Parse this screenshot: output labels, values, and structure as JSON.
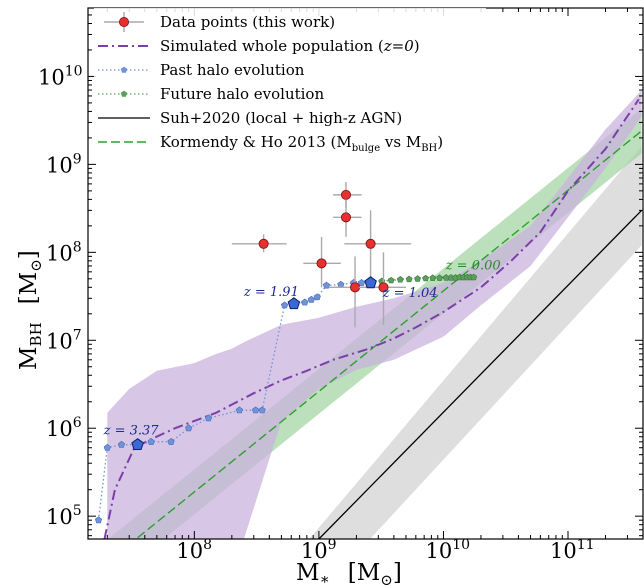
{
  "chart_data": {
    "type": "scatter",
    "xlabel": "M",
    "xlabel_sub": "∗",
    "xlabel_unit": "[M",
    "xlabel_unit_sub": "⊙",
    "xlabel_unit_close": "]",
    "ylabel": "M",
    "ylabel_sub": "BH",
    "ylabel_unit": "[M",
    "ylabel_unit_sub": "⊙",
    "ylabel_unit_close": "]",
    "x_scale": "log",
    "y_scale": "log",
    "xlim": [
      14000000.0,
      400000000000.0
    ],
    "ylim": [
      55000.0,
      60000000000.0
    ],
    "x_ticks": [
      {
        "value": 100000000.0,
        "base": "10",
        "exp": "8"
      },
      {
        "value": 1000000000.0,
        "base": "10",
        "exp": "9"
      },
      {
        "value": 10000000000.0,
        "base": "10",
        "exp": "10"
      },
      {
        "value": 100000000000.0,
        "base": "10",
        "exp": "11"
      }
    ],
    "y_ticks": [
      {
        "value": 100000.0,
        "base": "10",
        "exp": "5"
      },
      {
        "value": 1000000.0,
        "base": "10",
        "exp": "6"
      },
      {
        "value": 10000000.0,
        "base": "10",
        "exp": "7"
      },
      {
        "value": 100000000.0,
        "base": "10",
        "exp": "8"
      },
      {
        "value": 1000000000.0,
        "base": "10",
        "exp": "9"
      },
      {
        "value": 10000000000.0,
        "base": "10",
        "exp": "10"
      }
    ],
    "legend": {
      "position": "top-left",
      "entries": [
        {
          "label": "Data points (this work)",
          "style": "errorbar-marker",
          "color": "#e83030"
        },
        {
          "label": "Simulated whole population (",
          "label_tail": ")",
          "math": "z=0",
          "style": "dashdot",
          "color": "#7b3fa8"
        },
        {
          "label": "Past halo evolution",
          "style": "dotted-marker",
          "color": "#6f93d8"
        },
        {
          "label": "Future halo evolution",
          "style": "dotted-marker",
          "color": "#5aa05a"
        },
        {
          "label": "Suh+2020 (local + high-z AGN)",
          "style": "solid",
          "color": "#000000"
        },
        {
          "label": "Kormendy & Ho 2013 (M",
          "label_sub": "bulge",
          "label_mid": " vs M",
          "label_sub2": "BH",
          "label_tail": ")",
          "style": "dashed",
          "color": "#2ca02c"
        }
      ]
    },
    "data_points": [
      {
        "x": 360000000.0,
        "y": 125000000.0,
        "xerr": [
          200000000.0,
          550000000.0
        ],
        "yerr": [
          100000000.0,
          160000000.0
        ]
      },
      {
        "x": 1050000000.0,
        "y": 75000000.0,
        "xerr": [
          750000000.0,
          1500000000.0
        ],
        "yerr": [
          40000000.0,
          150000000.0
        ]
      },
      {
        "x": 1650000000.0,
        "y": 450000000.0,
        "xerr": [
          1300000000.0,
          2200000000.0
        ],
        "yerr": [
          320000000.0,
          630000000.0
        ]
      },
      {
        "x": 1650000000.0,
        "y": 250000000.0,
        "xerr": [
          1300000000.0,
          2200000000.0
        ],
        "yerr": [
          150000000.0,
          400000000.0
        ]
      },
      {
        "x": 1950000000.0,
        "y": 40000000.0,
        "xerr": [
          1200000000.0,
          3300000000.0
        ],
        "yerr": [
          14000000.0,
          90000000.0
        ]
      },
      {
        "x": 2600000000.0,
        "y": 125000000.0,
        "xerr": [
          1600000000.0,
          5500000000.0
        ],
        "yerr": [
          40000000.0,
          300000000.0
        ]
      },
      {
        "x": 3300000000.0,
        "y": 40000000.0,
        "xerr": [
          2100000000.0,
          5000000000.0
        ],
        "yerr": [
          15000000.0,
          100000000.0
        ]
      }
    ],
    "simulated_median": {
      "x": [
        19000000.0,
        23000000.0,
        33000000.0,
        45000000.0,
        70000000.0,
        150000000.0,
        300000000.0,
        500000000.0,
        800000000.0,
        1300000000.0,
        2500000000.0,
        4000000000.0,
        6000000000.0,
        10000000000.0,
        20000000000.0,
        35000000000.0,
        60000000000.0,
        100000000000.0,
        200000000000.0,
        370000000000.0
      ],
      "y": [
        55000.0,
        200000.0,
        600000.0,
        750000.0,
        1000000.0,
        1500000.0,
        2500000.0,
        3500000.0,
        4500000.0,
        6000000.0,
        8000000.0,
        10500000.0,
        14000000.0,
        21000000.0,
        40000000.0,
        80000000.0,
        170000000.0,
        500000000.0,
        1500000000.0,
        5500000000.0
      ]
    },
    "simulated_band": {
      "x": [
        20000000.0,
        30000000.0,
        50000000.0,
        100000000.0,
        150000000.0,
        200000000.0,
        250000000.0,
        500000000.0,
        1000000000.0,
        2000000000.0,
        4000000000.0,
        10000000000.0,
        20000000000.0,
        50000000000.0,
        100000000000.0,
        200000000000.0,
        390000000000.0
      ],
      "upper": [
        1500000.0,
        2800000.0,
        4500000.0,
        5500000.0,
        7000000.0,
        8000000.0,
        9500000.0,
        15000000.0,
        18000000.0,
        24000000.0,
        30000000.0,
        45000000.0,
        80000000.0,
        200000000.0,
        700000000.0,
        2500000000.0,
        7000000000.0
      ],
      "lower": [
        55000.0,
        55000.0,
        55000.0,
        55000.0,
        55000.0,
        55000.0,
        55000.0,
        1200000.0,
        2800000.0,
        4600000.0,
        6000000.0,
        11000000.0,
        25000000.0,
        70000000.0,
        250000000.0,
        900000000.0,
        3500000000.0
      ]
    },
    "past_halo": {
      "x": [
        17000000.0,
        20000000.0,
        26000000.0,
        35000000.0,
        45000000.0,
        65000000.0,
        90000000.0,
        130000000.0,
        230000000.0,
        310000000.0,
        350000000.0,
        530000000.0,
        630000000.0,
        770000000.0,
        870000000.0,
        970000000.0,
        1150000000.0,
        1500000000.0,
        1900000000.0,
        2200000000.0,
        2500000000.0
      ],
      "y": [
        90000.0,
        600000.0,
        650000.0,
        650000.0,
        700000.0,
        700000.0,
        1000000.0,
        1300000.0,
        1600000.0,
        1600000.0,
        1600000.0,
        25000000.0,
        26000000.0,
        27000000.0,
        29000000.0,
        31000000.0,
        42000000.0,
        43000000.0,
        45000000.0,
        45000000.0,
        45000000.0
      ]
    },
    "future_halo": {
      "x": [
        2600000000.0,
        3200000000.0,
        3800000000.0,
        4500000000.0,
        5300000000.0,
        6200000000.0,
        7200000000.0,
        8200000000.0,
        9300000000.0,
        10500000000.0,
        11500000000.0,
        12500000000.0,
        13500000000.0,
        14500000000.0,
        15500000000.0,
        16500000000.0,
        17500000000.0
      ],
      "y": [
        45000000.0,
        47000000.0,
        48000000.0,
        49000000.0,
        49500000.0,
        50000000.0,
        50500000.0,
        51000000.0,
        51000000.0,
        51500000.0,
        51500000.0,
        51500000.0,
        52000000.0,
        52000000.0,
        52000000.0,
        52000000.0,
        52000000.0
      ]
    },
    "highlight_markers": [
      {
        "x": 35000000.0,
        "y": 650000.0,
        "label": "z = 3.37",
        "label_color": "#1b2a8f"
      },
      {
        "x": 630000000.0,
        "y": 26000000.0,
        "label": "z = 1.91",
        "label_color": "#1b2a8f"
      },
      {
        "x": 2600000000.0,
        "y": 45000000.0,
        "label": "z = 1.04",
        "label_color": "#1b2a8f"
      },
      {
        "x": 17500000000.0,
        "y": 52000000.0,
        "label": "z = 0.00",
        "label_color": "#2a8a2a"
      }
    ],
    "kormendy_ho": {
      "x": [
        20000000.0,
        390000000000.0
      ],
      "y": [
        30000.0,
        2400000000.0
      ],
      "band_factor": 1.8
    },
    "suh2020": {
      "x": [
        1000000000.0,
        390000000000.0
      ],
      "y": [
        55000.0,
        300000000.0
      ],
      "band": [
        {
          "x": 500000000.0,
          "y_lo": 30000.0,
          "y_hi": 30000.0
        },
        {
          "x": 390000000000.0,
          "y_lo": 150000000.0,
          "y_hi": 1600000000.0
        }
      ]
    },
    "colors": {
      "purple": "#7b3fa8",
      "purple_band": "#c9b3de",
      "green": "#2ca02c",
      "green_band": "#9ed39e",
      "gray_band": "#d3d3d3",
      "past_blue": "#6f93d8",
      "future_green": "#5aa05a",
      "data_red": "#e83030",
      "highlight_blue": "#3a68d4"
    }
  }
}
